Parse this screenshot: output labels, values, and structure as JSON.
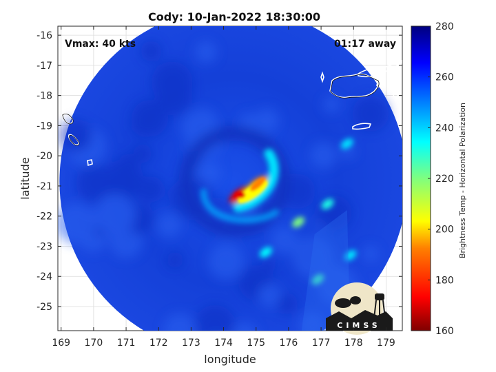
{
  "chart_data": {
    "type": "heatmap",
    "title": "Cody: 10-Jan-2022 18:30:00",
    "xlabel": "longitude",
    "ylabel": "latitude",
    "xlim": [
      168.9,
      179.5
    ],
    "ylim": [
      -25.8,
      -15.7
    ],
    "xticks": [
      "169",
      "170",
      "171",
      "172",
      "173",
      "174",
      "175",
      "176",
      "177",
      "178",
      "179"
    ],
    "yticks": [
      "-16",
      "-17",
      "-18",
      "-19",
      "-20",
      "-21",
      "-22",
      "-23",
      "-24",
      "-25"
    ],
    "grid": true,
    "annotations": {
      "vmax": "Vmax: 40 kts",
      "time_away": "01:17 away"
    },
    "swath": {
      "center_lon": 174.3,
      "center_lat": -20.85,
      "radius_deg": 5.35
    },
    "storm_center": {
      "lon": 174.55,
      "lat": -21.3,
      "min_temp": 170
    },
    "features": [
      {
        "lon": 174.5,
        "lat": -21.3,
        "temp": 172
      },
      {
        "lon": 175.05,
        "lat": -20.95,
        "temp": 190
      },
      {
        "lon": 174.9,
        "lat": -21.2,
        "temp": 205
      },
      {
        "lon": 176.3,
        "lat": -22.2,
        "temp": 220
      },
      {
        "lon": 177.2,
        "lat": -21.6,
        "temp": 232
      },
      {
        "lon": 177.8,
        "lat": -19.6,
        "temp": 238
      },
      {
        "lon": 176.9,
        "lat": -24.1,
        "temp": 228
      },
      {
        "lon": 175.3,
        "lat": -23.2,
        "temp": 235
      },
      {
        "lon": 177.9,
        "lat": -23.3,
        "temp": 238
      }
    ],
    "colorbar": {
      "label": "Brightness Temp - Horizontal Polarization",
      "range": [
        160,
        280
      ],
      "ticks": [
        "160",
        "180",
        "200",
        "220",
        "240",
        "260",
        "280"
      ],
      "colormap": "jet",
      "colors": [
        "#7f0000",
        "#ff0000",
        "#ff7f00",
        "#ffff00",
        "#7fff7f",
        "#00ffff",
        "#007fff",
        "#0000ff",
        "#00007f"
      ]
    },
    "logo": "CIMSS"
  }
}
